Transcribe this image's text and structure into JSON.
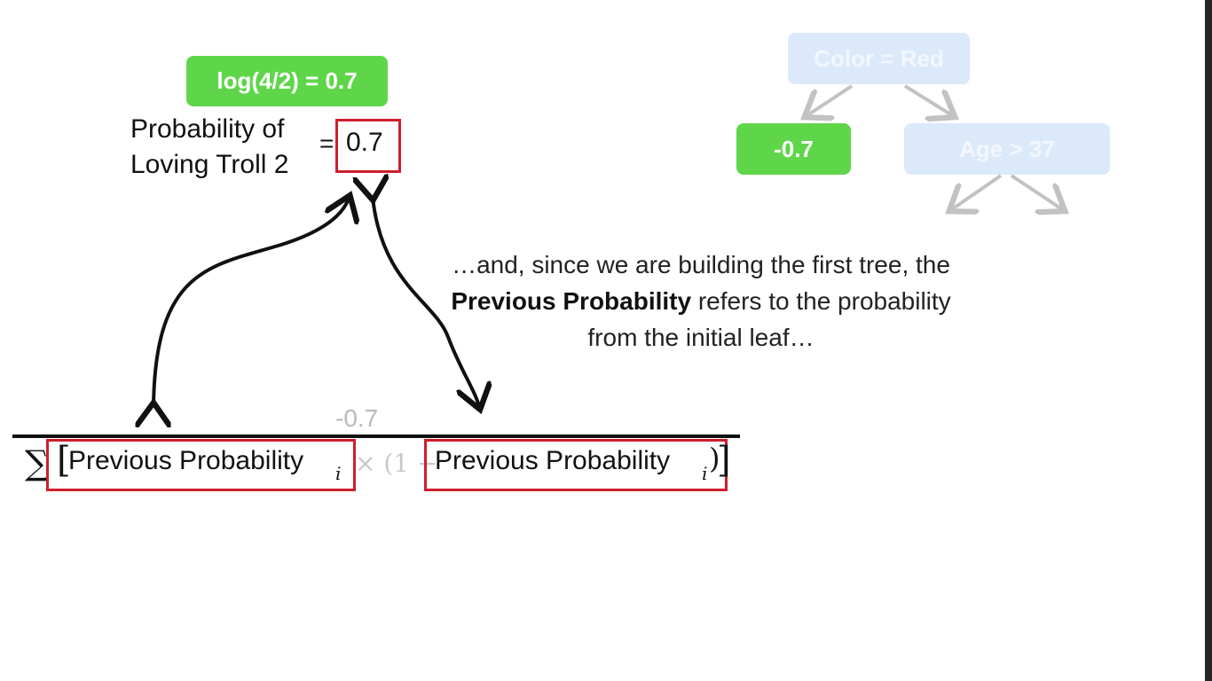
{
  "top_label": "log(4/2) = 0.7",
  "probability_label_line1": "Probability of",
  "probability_label_line2": "Loving Troll 2",
  "equals": "=",
  "probability_value": "0.7",
  "tree": {
    "root": "Color = Red",
    "left_leaf": "-0.7",
    "right_node": "Age > 37"
  },
  "caption": {
    "part1": "…and, since we are building the first tree, the ",
    "bold": "Previous Probability",
    "part2": " refers to the probability from the initial leaf…"
  },
  "formula": {
    "numerator": "-0.7",
    "sigma": "∑",
    "open_bracket": "[",
    "term1": "Previous Probability",
    "subscript1": "i",
    "times_one_minus": "× (1 −",
    "term2": "Previous Probability",
    "subscript2": "i",
    "close_paren": ")",
    "close_bracket": "]"
  },
  "colors": {
    "green": "#5fd64a",
    "red_box": "#cc1f2e",
    "faded_node": "#dbe9fb",
    "arrow": "#111111",
    "tree_arrow": "#c2c2c2"
  }
}
